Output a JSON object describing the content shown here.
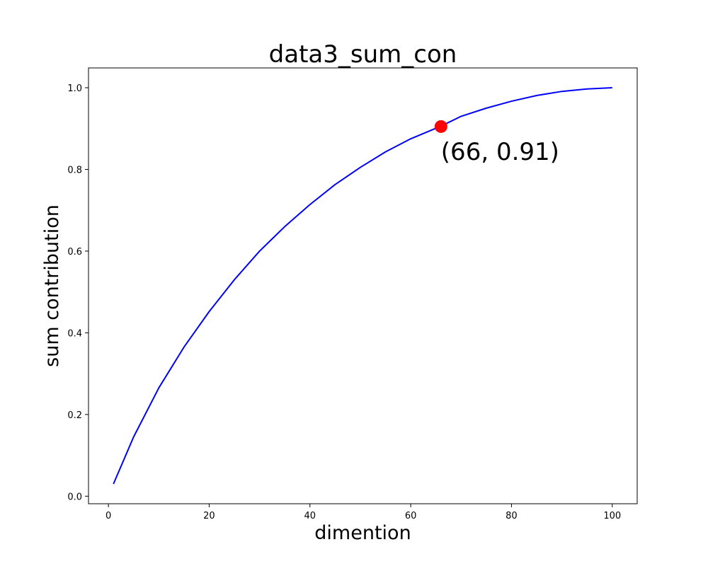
{
  "chart_data": {
    "type": "line",
    "title": "data3_sum_con",
    "xlabel": "dimention",
    "ylabel": "sum contribution",
    "xlim": [
      -3.95,
      104.95
    ],
    "ylim": [
      -0.0185,
      1.0485
    ],
    "xticks": [
      0,
      20,
      40,
      60,
      80,
      100
    ],
    "yticks": [
      0.0,
      0.2,
      0.4,
      0.6,
      0.8,
      1.0
    ],
    "xtick_labels": [
      "0",
      "20",
      "40",
      "60",
      "80",
      "100"
    ],
    "ytick_labels": [
      "0.0",
      "0.2",
      "0.4",
      "0.6",
      "0.8",
      "1.0"
    ],
    "grid": false,
    "line_color": "#0000ff",
    "series": [
      {
        "x": [
          1,
          5,
          10,
          15,
          20,
          25,
          30,
          35,
          40,
          45,
          50,
          55,
          60,
          66,
          70,
          75,
          80,
          85,
          90,
          95,
          100
        ],
        "y": [
          0.03,
          0.145,
          0.265,
          0.365,
          0.452,
          0.53,
          0.6,
          0.66,
          0.714,
          0.763,
          0.805,
          0.843,
          0.875,
          0.906,
          0.93,
          0.95,
          0.967,
          0.981,
          0.991,
          0.997,
          1.0
        ]
      }
    ],
    "highlight": {
      "x": 66,
      "y": 0.905,
      "color": "#ff0000",
      "label": "(66, 0.91)"
    }
  }
}
